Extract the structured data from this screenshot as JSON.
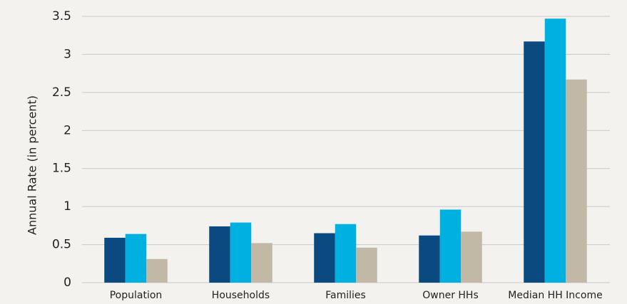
{
  "chart_data": {
    "type": "bar",
    "y_label": "Annual Rate (in percent)",
    "categories": [
      "Population",
      "Households",
      "Families",
      "Owner HHs",
      "Median HH Income"
    ],
    "series": [
      {
        "color": "#0b4a80",
        "values": [
          0.59,
          0.74,
          0.65,
          0.62,
          3.17
        ]
      },
      {
        "color": "#00b0e0",
        "values": [
          0.64,
          0.79,
          0.77,
          0.96,
          3.47
        ]
      },
      {
        "color": "#c1b8a5",
        "values": [
          0.31,
          0.52,
          0.46,
          0.67,
          2.67
        ]
      }
    ],
    "ylim": [
      0,
      3.5
    ],
    "yticks": [
      0,
      0.5,
      1,
      1.5,
      2,
      2.5,
      3,
      3.5
    ],
    "grid": true
  }
}
